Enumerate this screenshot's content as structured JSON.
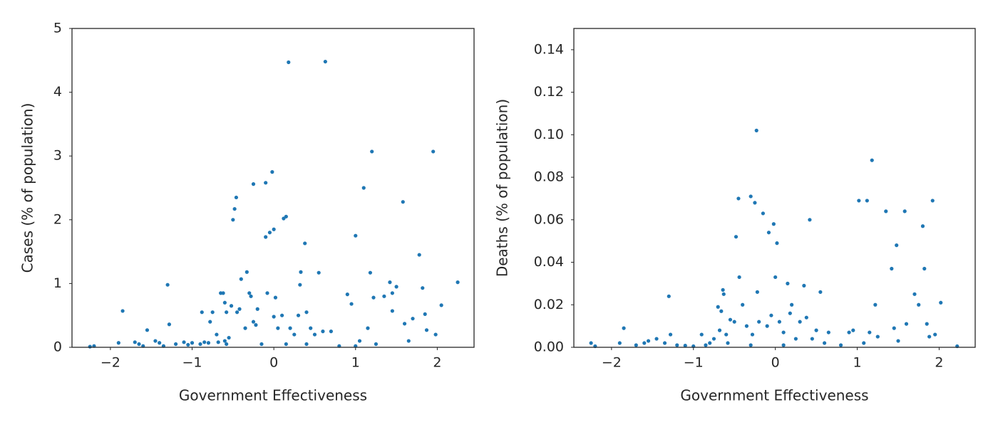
{
  "chart_data": [
    {
      "type": "scatter",
      "xlabel": "Government Effectiveness",
      "ylabel": "Cases (% of population)",
      "color": "#1f77b4",
      "xlim": [
        -2.47,
        2.45
      ],
      "ylim": [
        0,
        5
      ],
      "xticks": [
        {
          "value": -2,
          "label": "−2"
        },
        {
          "value": -1,
          "label": "−1"
        },
        0,
        1,
        2
      ],
      "yticks": [
        0,
        1,
        2,
        3,
        4,
        5
      ],
      "x": [
        -2.25,
        -2.2,
        -1.9,
        -1.85,
        -1.7,
        -1.65,
        -1.6,
        -1.55,
        -1.45,
        -1.4,
        -1.35,
        -1.3,
        -1.28,
        -1.2,
        -1.1,
        -1.05,
        -1.0,
        -0.9,
        -0.88,
        -0.85,
        -0.8,
        -0.78,
        -0.75,
        -0.7,
        -0.68,
        -0.65,
        -0.62,
        -0.6,
        -0.58,
        -0.6,
        -0.58,
        -0.55,
        -0.52,
        -0.5,
        -0.48,
        -0.46,
        -0.45,
        -0.42,
        -0.4,
        -0.35,
        -0.33,
        -0.3,
        -0.28,
        -0.25,
        -0.25,
        -0.22,
        -0.2,
        -0.1,
        -0.1,
        -0.08,
        -0.05,
        -0.02,
        0,
        0.02,
        0,
        0.05,
        0.1,
        0.12,
        0.15,
        0.18,
        0.2,
        0.25,
        0.3,
        0.32,
        0.33,
        0.38,
        0.4,
        0.45,
        0.5,
        0.55,
        0.6,
        0.63,
        0.7,
        0.9,
        0.95,
        1.0,
        1.05,
        1.1,
        1.15,
        1.18,
        1.2,
        1.22,
        1.25,
        1.35,
        1.42,
        1.45,
        1.45,
        1.5,
        1.58,
        1.6,
        1.65,
        1.7,
        1.78,
        1.82,
        1.85,
        1.87,
        1.95,
        1.98,
        2.05,
        2.25,
        0.15,
        -0.15,
        0.4,
        0.8,
        1.0
      ],
      "values": [
        0.01,
        0.02,
        0.07,
        0.57,
        0.08,
        0.05,
        0.02,
        0.27,
        0.1,
        0.07,
        0.02,
        0.98,
        0.36,
        0.05,
        0.08,
        0.04,
        0.07,
        0.05,
        0.55,
        0.08,
        0.07,
        0.4,
        0.55,
        0.2,
        0.08,
        0.85,
        0.85,
        0.7,
        0.55,
        0.1,
        0.05,
        0.15,
        0.65,
        2.0,
        2.17,
        2.35,
        0.55,
        0.6,
        1.07,
        0.3,
        1.18,
        0.85,
        0.8,
        2.56,
        0.4,
        0.35,
        0.6,
        2.58,
        1.73,
        0.85,
        1.8,
        2.75,
        1.85,
        0.78,
        0.48,
        0.3,
        0.5,
        2.02,
        2.05,
        4.47,
        0.3,
        0.2,
        0.5,
        0.98,
        1.18,
        1.63,
        0.55,
        0.3,
        0.2,
        1.17,
        0.25,
        4.48,
        0.25,
        0.83,
        0.68,
        1.75,
        0.1,
        2.5,
        0.3,
        1.17,
        3.07,
        0.78,
        0.05,
        0.8,
        1.02,
        0.85,
        0.57,
        0.95,
        2.28,
        0.37,
        0.1,
        0.45,
        1.45,
        0.93,
        0.52,
        0.27,
        3.07,
        0.2,
        0.66,
        1.02,
        0.05,
        0.05,
        0.05,
        0.02,
        0.02
      ]
    },
    {
      "type": "scatter",
      "xlabel": "Government Effectiveness",
      "ylabel": "Deaths (% of population)",
      "color": "#1f77b4",
      "xlim": [
        -2.46,
        2.44
      ],
      "ylim": [
        0,
        0.15
      ],
      "xticks": [
        {
          "value": -2,
          "label": "−2"
        },
        {
          "value": -1,
          "label": "−1"
        },
        0,
        1,
        2
      ],
      "yticks": [
        {
          "value": 0,
          "label": "0.00"
        },
        {
          "value": 0.02,
          "label": "0.02"
        },
        {
          "value": 0.04,
          "label": "0.04"
        },
        {
          "value": 0.06,
          "label": "0.06"
        },
        {
          "value": 0.08,
          "label": "0.08"
        },
        {
          "value": 0.1,
          "label": "0.10"
        },
        {
          "value": 0.12,
          "label": "0.12"
        },
        {
          "value": 0.14,
          "label": "0.14"
        }
      ],
      "x": [
        -2.25,
        -2.2,
        -1.85,
        -1.9,
        -1.7,
        -1.6,
        -1.55,
        -1.45,
        -1.35,
        -1.3,
        -1.28,
        -1.2,
        -1.1,
        -1.0,
        -0.9,
        -0.85,
        -0.8,
        -0.75,
        -0.7,
        -0.68,
        -0.66,
        -0.64,
        -0.63,
        -0.6,
        -0.58,
        -0.55,
        -0.5,
        -0.48,
        -0.45,
        -0.44,
        -0.4,
        -0.35,
        -0.3,
        -0.28,
        -0.25,
        -0.23,
        -0.22,
        -0.2,
        -0.15,
        -0.1,
        -0.08,
        -0.05,
        -0.02,
        0,
        0.02,
        0.05,
        0.1,
        0.15,
        0.18,
        0.2,
        0.25,
        0.3,
        0.35,
        0.38,
        0.42,
        0.45,
        0.5,
        0.55,
        0.6,
        0.65,
        0.9,
        0.95,
        1.02,
        1.08,
        1.12,
        1.15,
        1.18,
        1.22,
        1.25,
        1.35,
        1.42,
        1.45,
        1.48,
        1.5,
        1.58,
        1.6,
        1.7,
        1.75,
        1.8,
        1.82,
        1.85,
        1.88,
        1.92,
        1.95,
        2.02,
        2.22,
        -0.3,
        0.1,
        0.8
      ],
      "values": [
        0.002,
        0.0005,
        0.009,
        0.002,
        0.001,
        0.002,
        0.003,
        0.004,
        0.002,
        0.024,
        0.006,
        0.001,
        0.0008,
        0.0005,
        0.006,
        0.001,
        0.002,
        0.004,
        0.019,
        0.008,
        0.017,
        0.027,
        0.025,
        0.006,
        0.002,
        0.013,
        0.012,
        0.052,
        0.07,
        0.033,
        0.02,
        0.01,
        0.071,
        0.006,
        0.068,
        0.102,
        0.026,
        0.012,
        0.063,
        0.01,
        0.054,
        0.015,
        0.058,
        0.033,
        0.049,
        0.012,
        0.007,
        0.03,
        0.016,
        0.02,
        0.004,
        0.012,
        0.029,
        0.014,
        0.06,
        0.004,
        0.008,
        0.026,
        0.002,
        0.007,
        0.007,
        0.008,
        0.069,
        0.002,
        0.069,
        0.007,
        0.088,
        0.02,
        0.005,
        0.064,
        0.037,
        0.009,
        0.048,
        0.003,
        0.064,
        0.011,
        0.025,
        0.02,
        0.057,
        0.037,
        0.011,
        0.005,
        0.069,
        0.006,
        0.021,
        0.0005,
        0.001,
        0.001,
        0.001
      ]
    }
  ]
}
